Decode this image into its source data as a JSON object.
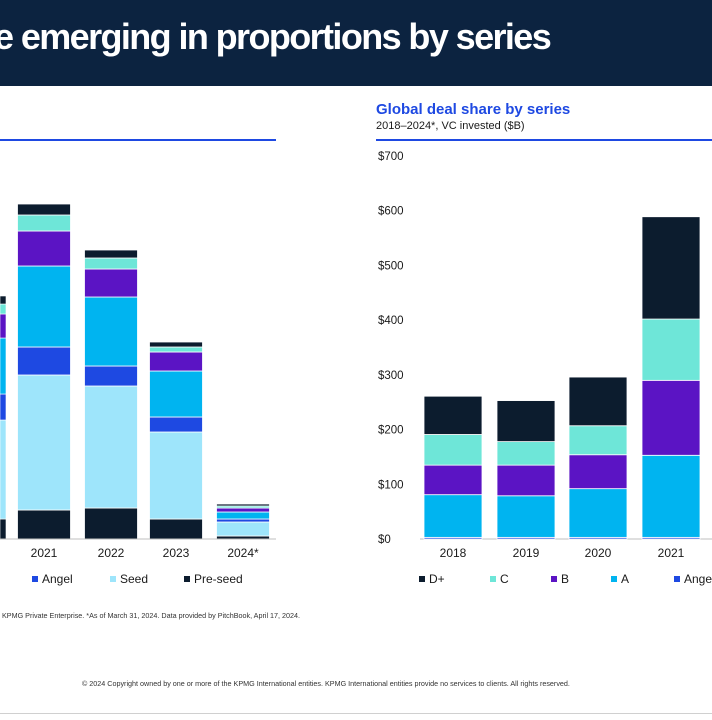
{
  "header": {
    "title": "e emerging in proportions by series"
  },
  "colors": {
    "banner": "#0c2340",
    "accent": "#1e49e2",
    "D+": "#0c1c2e",
    "C": "#6ee6d8",
    "B": "#5b14c4",
    "A": "#00b4f0",
    "Angel": "#1e49e2",
    "Seed": "#9ee5fb",
    "Pre-seed": "#0c1c2e"
  },
  "left_chart": {
    "x_labels": [
      "2021",
      "2022",
      "2023",
      "2024*"
    ],
    "legend": [
      "Angel",
      "Seed",
      "Pre-seed"
    ]
  },
  "right_chart": {
    "title": "Global deal share by series",
    "subtitle": "2018–2024*, VC invested ($B)",
    "legend": [
      "D+",
      "C",
      "B",
      "A",
      "Angel"
    ]
  },
  "footer": {
    "source": ", KPMG Private Enterprise. *As of March 31, 2024. Data provided by PitchBook, April 17, 2024.",
    "copyright": "© 2024 Copyright owned by one or more of the KPMG International entities. KPMG International entities provide no services to clients. All rights reserved."
  },
  "chart_data": [
    {
      "type": "bar",
      "stacked": true,
      "title": "",
      "categories": [
        "2021",
        "2022",
        "2023",
        "2024*"
      ],
      "series": [
        {
          "name": "Pre-seed",
          "values": [
            29,
            31,
            20,
            3
          ]
        },
        {
          "name": "Seed",
          "values": [
            135,
            122,
            87,
            14
          ]
        },
        {
          "name": "Angel",
          "values": [
            28,
            20,
            15,
            3
          ]
        },
        {
          "name": "A",
          "values": [
            81,
            69,
            46,
            7
          ]
        },
        {
          "name": "B",
          "values": [
            35,
            28,
            19,
            4
          ]
        },
        {
          "name": "C",
          "values": [
            16,
            11,
            5,
            2
          ]
        },
        {
          "name": "D+",
          "values": [
            11,
            8,
            5,
            2
          ]
        }
      ],
      "legend_position": "bottom"
    },
    {
      "type": "bar",
      "stacked": true,
      "title": "Global deal share by series",
      "subtitle": "2018–2024*, VC invested ($B)",
      "categories": [
        "2018",
        "2019",
        "2020",
        "2021"
      ],
      "series": [
        {
          "name": "Angel",
          "values": [
            3,
            3,
            3,
            3
          ]
        },
        {
          "name": "A",
          "values": [
            78,
            76,
            89,
            150
          ]
        },
        {
          "name": "B",
          "values": [
            54,
            56,
            62,
            137
          ]
        },
        {
          "name": "C",
          "values": [
            56,
            43,
            53,
            112
          ]
        },
        {
          "name": "D+",
          "values": [
            70,
            75,
            89,
            187
          ]
        }
      ],
      "ylabel": "",
      "xlabel": "",
      "ylim": [
        0,
        700
      ],
      "yticks": [
        "$0",
        "$100",
        "$200",
        "$300",
        "$400",
        "$500",
        "$600",
        "$700"
      ],
      "grid": false,
      "legend_position": "bottom"
    }
  ]
}
